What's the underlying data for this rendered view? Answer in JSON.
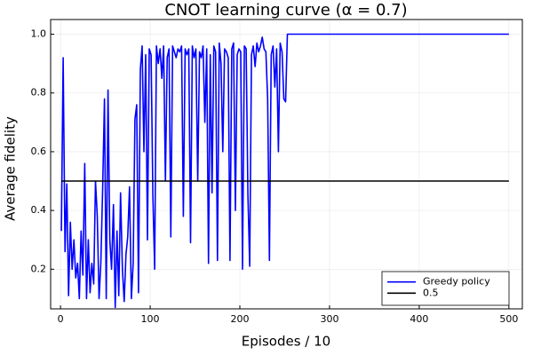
{
  "chart_data": {
    "type": "line",
    "title": "CNOT learning curve (α = 0.7)",
    "xlabel": "Episodes / 10",
    "ylabel": "Average fidelity",
    "xlim": [
      -11,
      515
    ],
    "xticks": [
      0,
      100,
      200,
      300,
      400,
      500
    ],
    "ylim": [
      0.065,
      1.05
    ],
    "yticks": [
      0.2,
      0.4,
      0.6,
      0.8,
      {
        "value": 1,
        "label": "1.0"
      }
    ],
    "grid": true,
    "legend": "bottom-right",
    "series": [
      {
        "name": "Greedy policy",
        "color": "#0000ff",
        "x": [
          1,
          3,
          5,
          7,
          9,
          11,
          13,
          15,
          17,
          19,
          21,
          23,
          25,
          27,
          29,
          31,
          33,
          35,
          37,
          39,
          41,
          43,
          45,
          47,
          49,
          51,
          53,
          55,
          57,
          59,
          61,
          63,
          65,
          67,
          69,
          71,
          73,
          75,
          77,
          79,
          81,
          83,
          85,
          87,
          89,
          91,
          93,
          95,
          97,
          99,
          101,
          103,
          105,
          107,
          109,
          111,
          113,
          115,
          117,
          119,
          121,
          123,
          125,
          127,
          129,
          131,
          133,
          135,
          137,
          139,
          141,
          143,
          145,
          147,
          149,
          151,
          153,
          155,
          157,
          159,
          161,
          163,
          165,
          167,
          169,
          171,
          173,
          175,
          177,
          179,
          181,
          183,
          185,
          187,
          189,
          191,
          193,
          195,
          197,
          199,
          201,
          203,
          205,
          207,
          209,
          211,
          213,
          215,
          217,
          219,
          221,
          223,
          225,
          227,
          229,
          231,
          233,
          235,
          237,
          239,
          241,
          243,
          245,
          247,
          249,
          251,
          253,
          500
        ],
        "values": [
          0.33,
          0.92,
          0.26,
          0.49,
          0.11,
          0.36,
          0.2,
          0.3,
          0.17,
          0.22,
          0.1,
          0.33,
          0.18,
          0.56,
          0.1,
          0.3,
          0.12,
          0.22,
          0.15,
          0.5,
          0.38,
          0.1,
          0.22,
          0.48,
          0.78,
          0.1,
          0.81,
          0.3,
          0.2,
          0.42,
          0.07,
          0.33,
          0.11,
          0.46,
          0.2,
          0.09,
          0.25,
          0.31,
          0.48,
          0.1,
          0.22,
          0.71,
          0.76,
          0.12,
          0.88,
          0.96,
          0.6,
          0.93,
          0.3,
          0.95,
          0.93,
          0.45,
          0.2,
          0.96,
          0.9,
          0.95,
          0.85,
          0.96,
          0.5,
          0.92,
          0.95,
          0.31,
          0.96,
          0.94,
          0.92,
          0.95,
          0.94,
          0.96,
          0.38,
          0.95,
          0.93,
          0.95,
          0.29,
          0.96,
          0.92,
          0.95,
          0.5,
          0.94,
          0.92,
          0.96,
          0.7,
          0.95,
          0.22,
          0.93,
          0.46,
          0.96,
          0.94,
          0.23,
          0.97,
          0.9,
          0.6,
          0.95,
          0.94,
          0.92,
          0.23,
          0.95,
          0.97,
          0.4,
          0.93,
          0.95,
          0.94,
          0.2,
          0.96,
          0.95,
          0.45,
          0.21,
          0.93,
          0.96,
          0.89,
          0.97,
          0.94,
          0.96,
          0.99,
          0.95,
          0.94,
          0.78,
          0.23,
          0.93,
          0.96,
          0.82,
          0.95,
          0.6,
          0.97,
          0.94,
          0.78,
          0.77,
          1,
          1
        ]
      },
      {
        "name": "0.5",
        "color": "#000000",
        "x": [
          1,
          500
        ],
        "values": [
          0.5,
          0.5
        ]
      }
    ]
  }
}
